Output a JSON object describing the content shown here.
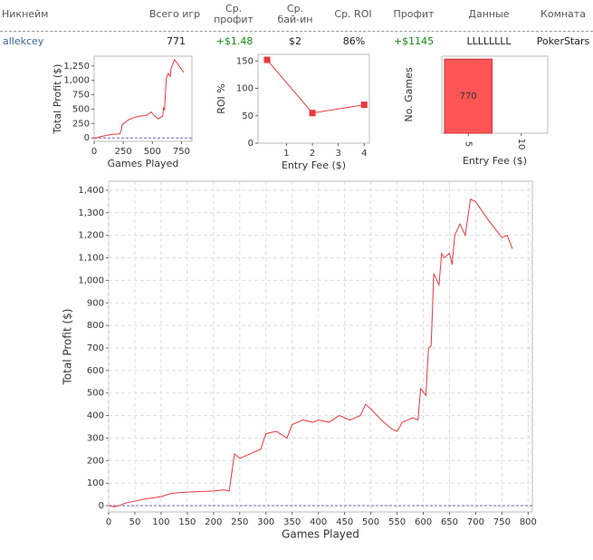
{
  "table": {
    "headers": [
      "Никнейм",
      "Всего игр",
      "Ср. профит",
      "Ср. бай-ин",
      "Ср. ROI",
      "Профит",
      "Данные",
      "Комната"
    ],
    "rows": [
      [
        "allekcey",
        "771",
        "+$1.48",
        "$2",
        "86%",
        "+$1145",
        "LLLLLLLL",
        "PokerStars"
      ]
    ]
  },
  "chart_data": [
    {
      "type": "line",
      "xlabel": "Games Played",
      "ylabel": "Total Profit ($)",
      "color": "#e8383d",
      "x": [
        0,
        20,
        50,
        100,
        150,
        220,
        235,
        240,
        300,
        350,
        400,
        450,
        490,
        520,
        550,
        590,
        595,
        605,
        610,
        620,
        635,
        655,
        660,
        690,
        720,
        750,
        770
      ],
      "values": [
        0,
        0,
        20,
        40,
        60,
        70,
        150,
        230,
        320,
        360,
        380,
        390,
        450,
        380,
        330,
        380,
        520,
        490,
        700,
        1030,
        1120,
        1070,
        1200,
        1360,
        1280,
        1190,
        1140
      ],
      "xlim": [
        0,
        840
      ],
      "ylim": [
        -60,
        1420
      ],
      "xticks": [
        0,
        250,
        500,
        750
      ],
      "yticks": [
        0,
        250,
        500,
        750,
        {
          "value": 1000,
          "label": "1,000"
        },
        {
          "value": 1250,
          "label": "1,250"
        }
      ]
    },
    {
      "type": "line",
      "xlabel": "Entry Fee ($)",
      "ylabel": "ROI %",
      "color": "#e8383d",
      "marker": "square",
      "x": [
        0.25,
        2,
        4
      ],
      "values": [
        152,
        55,
        70
      ],
      "xlim": [
        -0.1,
        4.2
      ],
      "ylim": [
        0,
        162
      ],
      "xticks": [
        1,
        2,
        3,
        4
      ],
      "yticks": [
        0,
        50,
        100,
        150
      ]
    },
    {
      "type": "bar",
      "xlabel": "Entry Fee ($)",
      "ylabel": "No. Games",
      "color": "#ff5555",
      "categories": [
        "5",
        "10"
      ],
      "values": [
        770,
        0
      ],
      "value_labels": [
        "770",
        null
      ],
      "ylim": [
        0,
        800
      ]
    },
    {
      "type": "line",
      "xlabel": "Games Played",
      "ylabel": "Total Profit ($)",
      "color": "#e8383d",
      "grid": true,
      "x": [
        0,
        10,
        20,
        30,
        50,
        70,
        100,
        120,
        150,
        200,
        220,
        230,
        235,
        240,
        250,
        270,
        290,
        300,
        320,
        340,
        350,
        370,
        390,
        400,
        420,
        440,
        460,
        480,
        490,
        500,
        520,
        540,
        550,
        560,
        580,
        590,
        595,
        605,
        610,
        615,
        620,
        630,
        635,
        640,
        650,
        655,
        660,
        670,
        680,
        690,
        700,
        720,
        740,
        750,
        760,
        770
      ],
      "values": [
        0,
        -5,
        0,
        10,
        20,
        30,
        40,
        55,
        60,
        65,
        70,
        65,
        150,
        230,
        210,
        230,
        250,
        320,
        330,
        300,
        360,
        380,
        370,
        380,
        370,
        400,
        380,
        400,
        450,
        430,
        380,
        340,
        330,
        370,
        390,
        380,
        520,
        490,
        700,
        710,
        1030,
        980,
        1120,
        1100,
        1120,
        1070,
        1200,
        1250,
        1200,
        1360,
        1350,
        1280,
        1220,
        1190,
        1200,
        1140
      ],
      "xlim": [
        0,
        808
      ],
      "ylim": [
        -28,
        1440
      ],
      "xticks": [
        0,
        50,
        100,
        150,
        200,
        250,
        300,
        350,
        400,
        450,
        500,
        550,
        600,
        650,
        700,
        750,
        800
      ],
      "yticks": [
        0,
        100,
        200,
        300,
        400,
        500,
        600,
        700,
        800,
        900,
        {
          "value": 1000,
          "label": "1,000"
        },
        {
          "value": 1100,
          "label": "1,100"
        },
        {
          "value": 1200,
          "label": "1,200"
        },
        {
          "value": 1300,
          "label": "1,300"
        },
        {
          "value": 1400,
          "label": "1,400"
        }
      ]
    }
  ]
}
